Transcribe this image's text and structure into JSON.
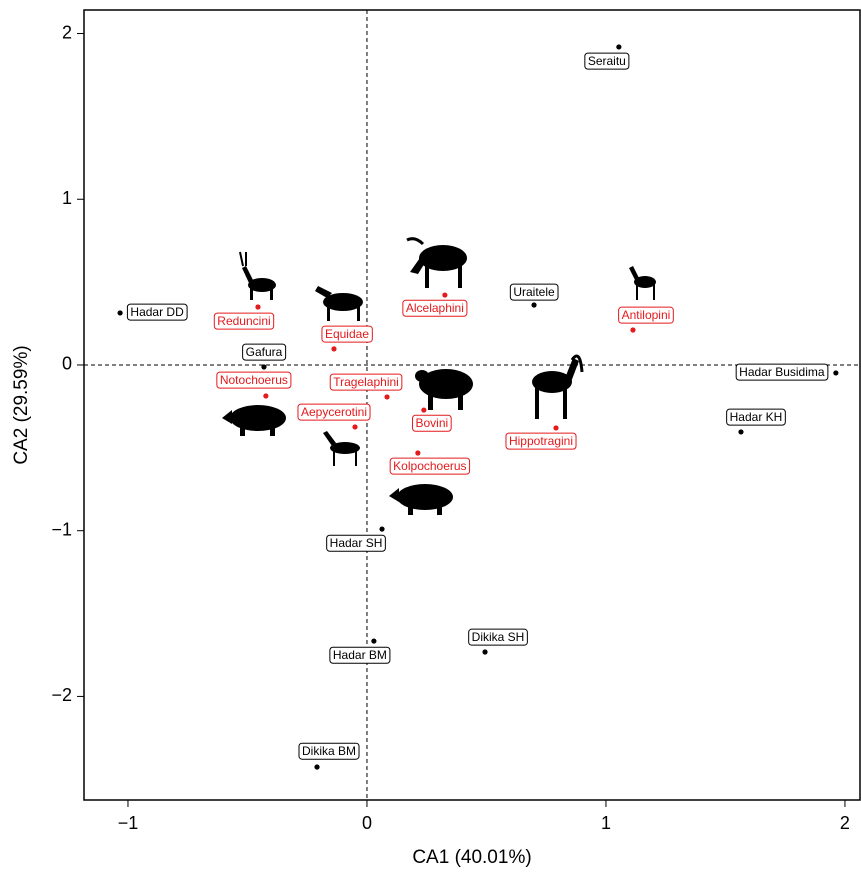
{
  "chart_data": {
    "type": "scatter",
    "x_label": "CA1 (40.01%)",
    "y_label": "CA2 (29.59%)",
    "xlim": [
      -1.184,
      2.063
    ],
    "ylim": [
      -2.625,
      2.142
    ],
    "xticks": [
      {
        "value": -1,
        "label": "−1"
      },
      0,
      1,
      2
    ],
    "yticks": [
      {
        "value": -2,
        "label": "−2"
      },
      {
        "value": -1,
        "label": "−1"
      },
      0,
      1,
      2
    ],
    "reference_lines": {
      "x": 0,
      "y": 0
    },
    "series": [
      {
        "color": "#000000",
        "labels": [
          "Seraitu",
          "Hadar DD",
          "Uraitele",
          "Gafura",
          "Hadar Busidima",
          "Hadar KH",
          "Hadar SH",
          "Hadar BM",
          "Dikika SH",
          "Dikika BM"
        ],
        "x": [
          1.054,
          -1.033,
          0.699,
          -0.431,
          1.962,
          1.565,
          0.063,
          0.029,
          0.494,
          -0.209
        ],
        "values": [
          1.919,
          0.314,
          0.362,
          -0.012,
          -0.048,
          -0.404,
          -0.99,
          -1.666,
          -1.732,
          -2.426
        ]
      },
      {
        "color": "#e41a1c",
        "labels": [
          "Reduncini",
          "Equidae",
          "Alcelaphini",
          "Antilopini",
          "Notochoerus",
          "Tragelaphini",
          "Aepycerotini",
          "Bovini",
          "Hippotragini",
          "Kolpochoerus"
        ],
        "x": [
          -0.456,
          -0.138,
          0.326,
          1.113,
          -0.423,
          0.084,
          -0.05,
          0.238,
          0.791,
          0.213
        ],
        "values": [
          0.35,
          0.097,
          0.422,
          0.211,
          -0.187,
          -0.193,
          -0.374,
          -0.272,
          -0.38,
          -0.531
        ]
      }
    ]
  }
}
